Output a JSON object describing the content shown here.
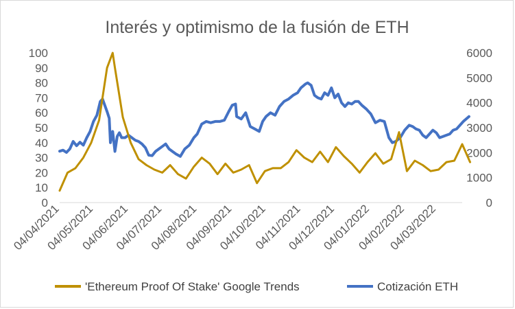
{
  "chart_data": {
    "type": "line",
    "title": "Interés y optimismo de la fusión de ETH",
    "x_start": "2021-04-04",
    "x_end": "2022-03-27",
    "x_tick_labels": [
      "04/04/2021",
      "04/05/2021",
      "04/06/2021",
      "04/07/2021",
      "04/08/2021",
      "04/09/2021",
      "04/10/2021",
      "04/11/2021",
      "04/12/2021",
      "04/01/2022",
      "04/02/2022",
      "04/03/2022"
    ],
    "x_tick_dates": [
      "2021-04-04",
      "2021-05-04",
      "2021-06-04",
      "2021-07-04",
      "2021-08-04",
      "2021-09-04",
      "2021-10-04",
      "2021-11-04",
      "2021-12-04",
      "2022-01-04",
      "2022-02-04",
      "2022-03-04"
    ],
    "y_left": {
      "min": 0,
      "max": 100,
      "step": 10,
      "labels": [
        "0",
        "10",
        "20",
        "30",
        "40",
        "50",
        "60",
        "70",
        "80",
        "90",
        "100"
      ]
    },
    "y_right": {
      "min": 0,
      "max": 6000,
      "step": 1000,
      "labels": [
        "0",
        "1000",
        "2000",
        "3000",
        "4000",
        "5000",
        "6000"
      ]
    },
    "grid": false,
    "legend_position": "bottom",
    "series": [
      {
        "name": "'Ethereum Proof Of Stake' Google Trends",
        "axis": "left",
        "color": "#BF9000",
        "points": [
          [
            "2021-04-04",
            8
          ],
          [
            "2021-04-11",
            20
          ],
          [
            "2021-04-18",
            23
          ],
          [
            "2021-04-25",
            30
          ],
          [
            "2021-05-02",
            40
          ],
          [
            "2021-05-09",
            55
          ],
          [
            "2021-05-16",
            90
          ],
          [
            "2021-05-21",
            100
          ],
          [
            "2021-05-23",
            90
          ],
          [
            "2021-05-30",
            57
          ],
          [
            "2021-06-06",
            40
          ],
          [
            "2021-06-13",
            29
          ],
          [
            "2021-06-20",
            25
          ],
          [
            "2021-06-27",
            22
          ],
          [
            "2021-07-04",
            20
          ],
          [
            "2021-07-11",
            25
          ],
          [
            "2021-07-18",
            19
          ],
          [
            "2021-07-25",
            16
          ],
          [
            "2021-08-01",
            24
          ],
          [
            "2021-08-08",
            30
          ],
          [
            "2021-08-15",
            26
          ],
          [
            "2021-08-22",
            19
          ],
          [
            "2021-08-29",
            26
          ],
          [
            "2021-09-05",
            20
          ],
          [
            "2021-09-12",
            22
          ],
          [
            "2021-09-19",
            25
          ],
          [
            "2021-09-26",
            13
          ],
          [
            "2021-10-03",
            21
          ],
          [
            "2021-10-10",
            23
          ],
          [
            "2021-10-17",
            23
          ],
          [
            "2021-10-24",
            27
          ],
          [
            "2021-10-31",
            35
          ],
          [
            "2021-11-07",
            30
          ],
          [
            "2021-11-14",
            27
          ],
          [
            "2021-11-21",
            34
          ],
          [
            "2021-11-28",
            27
          ],
          [
            "2021-12-05",
            37
          ],
          [
            "2021-12-12",
            31
          ],
          [
            "2021-12-19",
            26
          ],
          [
            "2021-12-26",
            20
          ],
          [
            "2022-01-02",
            27
          ],
          [
            "2022-01-09",
            33
          ],
          [
            "2022-01-16",
            26
          ],
          [
            "2022-01-23",
            29
          ],
          [
            "2022-01-30",
            47
          ],
          [
            "2022-02-06",
            21
          ],
          [
            "2022-02-13",
            28
          ],
          [
            "2022-02-20",
            25
          ],
          [
            "2022-02-27",
            21
          ],
          [
            "2022-03-06",
            22
          ],
          [
            "2022-03-13",
            27
          ],
          [
            "2022-03-20",
            28
          ],
          [
            "2022-03-27",
            39
          ],
          [
            "2022-04-03",
            27
          ]
        ]
      },
      {
        "name": "Cotización ETH",
        "axis": "right",
        "color": "#4472C4",
        "points": [
          [
            "2021-04-04",
            2060
          ],
          [
            "2021-04-07",
            2100
          ],
          [
            "2021-04-10",
            2010
          ],
          [
            "2021-04-13",
            2150
          ],
          [
            "2021-04-16",
            2450
          ],
          [
            "2021-04-19",
            2280
          ],
          [
            "2021-04-22",
            2420
          ],
          [
            "2021-04-25",
            2300
          ],
          [
            "2021-04-28",
            2600
          ],
          [
            "2021-05-01",
            2850
          ],
          [
            "2021-05-04",
            3250
          ],
          [
            "2021-05-07",
            3500
          ],
          [
            "2021-05-10",
            4050
          ],
          [
            "2021-05-12",
            4150
          ],
          [
            "2021-05-14",
            3900
          ],
          [
            "2021-05-16",
            3650
          ],
          [
            "2021-05-18",
            3380
          ],
          [
            "2021-05-19",
            2400
          ],
          [
            "2021-05-21",
            2850
          ],
          [
            "2021-05-23",
            2050
          ],
          [
            "2021-05-25",
            2650
          ],
          [
            "2021-05-27",
            2800
          ],
          [
            "2021-05-29",
            2600
          ],
          [
            "2021-06-01",
            2600
          ],
          [
            "2021-06-04",
            2700
          ],
          [
            "2021-06-07",
            2600
          ],
          [
            "2021-06-10",
            2500
          ],
          [
            "2021-06-13",
            2450
          ],
          [
            "2021-06-16",
            2350
          ],
          [
            "2021-06-19",
            2200
          ],
          [
            "2021-06-22",
            1900
          ],
          [
            "2021-06-25",
            1880
          ],
          [
            "2021-06-28",
            2050
          ],
          [
            "2021-07-01",
            2150
          ],
          [
            "2021-07-04",
            2250
          ],
          [
            "2021-07-07",
            2350
          ],
          [
            "2021-07-10",
            2150
          ],
          [
            "2021-07-13",
            2050
          ],
          [
            "2021-07-16",
            1950
          ],
          [
            "2021-07-20",
            1850
          ],
          [
            "2021-07-24",
            2150
          ],
          [
            "2021-07-28",
            2300
          ],
          [
            "2021-08-01",
            2600
          ],
          [
            "2021-08-04",
            2750
          ],
          [
            "2021-08-08",
            3150
          ],
          [
            "2021-08-12",
            3250
          ],
          [
            "2021-08-16",
            3200
          ],
          [
            "2021-08-20",
            3250
          ],
          [
            "2021-08-24",
            3250
          ],
          [
            "2021-08-28",
            3300
          ],
          [
            "2021-09-01",
            3650
          ],
          [
            "2021-09-04",
            3900
          ],
          [
            "2021-09-07",
            3950
          ],
          [
            "2021-09-08",
            3450
          ],
          [
            "2021-09-12",
            3350
          ],
          [
            "2021-09-16",
            3600
          ],
          [
            "2021-09-20",
            3050
          ],
          [
            "2021-09-24",
            2950
          ],
          [
            "2021-09-28",
            2850
          ],
          [
            "2021-10-01",
            3250
          ],
          [
            "2021-10-04",
            3450
          ],
          [
            "2021-10-08",
            3600
          ],
          [
            "2021-10-12",
            3500
          ],
          [
            "2021-10-16",
            3850
          ],
          [
            "2021-10-20",
            4050
          ],
          [
            "2021-10-24",
            4150
          ],
          [
            "2021-10-28",
            4300
          ],
          [
            "2021-11-01",
            4400
          ],
          [
            "2021-11-04",
            4600
          ],
          [
            "2021-11-08",
            4750
          ],
          [
            "2021-11-10",
            4800
          ],
          [
            "2021-11-13",
            4700
          ],
          [
            "2021-11-16",
            4300
          ],
          [
            "2021-11-19",
            4200
          ],
          [
            "2021-11-22",
            4150
          ],
          [
            "2021-11-25",
            4400
          ],
          [
            "2021-11-28",
            4300
          ],
          [
            "2021-12-01",
            4600
          ],
          [
            "2021-12-04",
            4200
          ],
          [
            "2021-12-07",
            4350
          ],
          [
            "2021-12-10",
            4000
          ],
          [
            "2021-12-13",
            3850
          ],
          [
            "2021-12-16",
            4000
          ],
          [
            "2021-12-19",
            3950
          ],
          [
            "2021-12-22",
            4050
          ],
          [
            "2021-12-25",
            4050
          ],
          [
            "2021-12-28",
            3900
          ],
          [
            "2022-01-01",
            3750
          ],
          [
            "2022-01-05",
            3550
          ],
          [
            "2022-01-09",
            3200
          ],
          [
            "2022-01-13",
            3300
          ],
          [
            "2022-01-17",
            3250
          ],
          [
            "2022-01-21",
            2600
          ],
          [
            "2022-01-24",
            2400
          ],
          [
            "2022-01-27",
            2450
          ],
          [
            "2022-01-31",
            2600
          ],
          [
            "2022-02-04",
            2900
          ],
          [
            "2022-02-08",
            3100
          ],
          [
            "2022-02-11",
            3050
          ],
          [
            "2022-02-14",
            2950
          ],
          [
            "2022-02-17",
            2900
          ],
          [
            "2022-02-20",
            2700
          ],
          [
            "2022-02-23",
            2600
          ],
          [
            "2022-02-26",
            2750
          ],
          [
            "2022-03-01",
            2900
          ],
          [
            "2022-03-04",
            2800
          ],
          [
            "2022-03-07",
            2600
          ],
          [
            "2022-03-10",
            2650
          ],
          [
            "2022-03-13",
            2700
          ],
          [
            "2022-03-16",
            2750
          ],
          [
            "2022-03-19",
            2900
          ],
          [
            "2022-03-22",
            2950
          ],
          [
            "2022-03-25",
            3100
          ],
          [
            "2022-03-28",
            3250
          ],
          [
            "2022-04-02",
            3450
          ]
        ]
      }
    ]
  }
}
